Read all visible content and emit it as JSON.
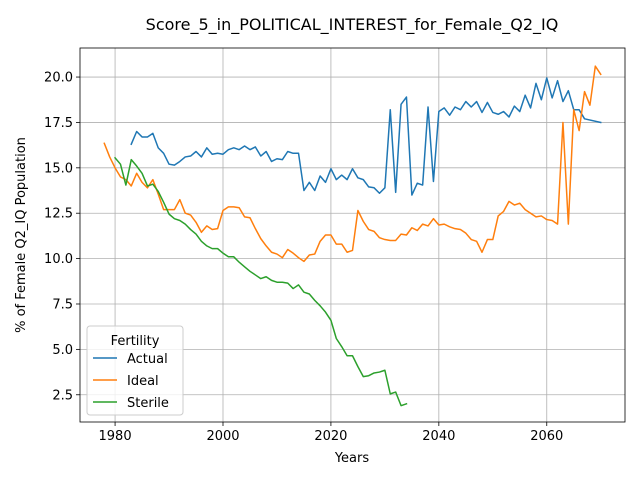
{
  "chart_data": {
    "type": "line",
    "title": "Score_5_in_POLITICAL_INTEREST_for_Female_Q2_IQ",
    "xlabel": "Years",
    "ylabel": "% of Female Q2_IQ Population",
    "xlim": [
      1973.5,
      2074.5
    ],
    "ylim": [
      1.0,
      21.6
    ],
    "xticks": [
      1980,
      2000,
      2020,
      2040,
      2060
    ],
    "yticks": [
      2.5,
      5.0,
      7.5,
      10.0,
      12.5,
      15.0,
      17.5,
      20.0
    ],
    "xtick_labels": [
      "1980",
      "2000",
      "2020",
      "2040",
      "2060"
    ],
    "ytick_labels": [
      "2.5",
      "5.0",
      "7.5",
      "10.0",
      "12.5",
      "15.0",
      "17.5",
      "20.0"
    ],
    "grid": true,
    "legend": {
      "title": "Fertility",
      "placement": "bottom-left"
    },
    "series": [
      {
        "name": "Actual",
        "color": "#1f77b4",
        "x": [
          1983,
          1984,
          1985,
          1986,
          1987,
          1988,
          1989,
          1990,
          1991,
          1992,
          1993,
          1994,
          1995,
          1996,
          1997,
          1998,
          1999,
          2000,
          2001,
          2002,
          2003,
          2004,
          2005,
          2006,
          2007,
          2008,
          2009,
          2010,
          2011,
          2012,
          2013,
          2014,
          2015,
          2016,
          2017,
          2018,
          2019,
          2020,
          2021,
          2022,
          2023,
          2024,
          2025,
          2026,
          2027,
          2028,
          2029,
          2030,
          2031,
          2032,
          2033,
          2034,
          2035,
          2036,
          2037,
          2038,
          2039,
          2040,
          2041,
          2042,
          2043,
          2044,
          2045,
          2046,
          2047,
          2048,
          2049,
          2050,
          2051,
          2052,
          2053,
          2054,
          2055,
          2056,
          2057,
          2058,
          2059,
          2060,
          2061,
          2062,
          2063,
          2064,
          2065,
          2066,
          2067,
          2070
        ],
        "y": [
          16.3,
          17.0,
          16.7,
          16.7,
          16.9,
          16.1,
          15.8,
          15.2,
          15.15,
          15.35,
          15.6,
          15.65,
          15.9,
          15.6,
          16.1,
          15.75,
          15.8,
          15.75,
          16.0,
          16.1,
          16.0,
          16.2,
          16.0,
          16.15,
          15.65,
          15.9,
          15.35,
          15.5,
          15.45,
          15.9,
          15.8,
          15.8,
          13.75,
          14.2,
          13.75,
          14.55,
          14.2,
          14.95,
          14.35,
          14.6,
          14.35,
          14.95,
          14.45,
          14.35,
          13.95,
          13.9,
          13.6,
          13.9,
          18.2,
          13.65,
          18.5,
          18.9,
          13.5,
          14.15,
          14.05,
          18.35,
          14.25,
          18.1,
          18.3,
          17.9,
          18.35,
          18.2,
          18.65,
          18.35,
          18.65,
          18.05,
          18.6,
          18.05,
          17.95,
          18.1,
          17.8,
          18.4,
          18.1,
          19.0,
          18.3,
          19.65,
          18.75,
          19.95,
          18.85,
          19.8,
          18.65,
          19.25,
          18.2,
          18.2,
          17.7,
          17.5
        ]
      },
      {
        "name": "Ideal",
        "color": "#ff7f0e",
        "x": [
          1978,
          1979,
          1980,
          1981,
          1982,
          1983,
          1984,
          1985,
          1986,
          1987,
          1988,
          1989,
          1990,
          1991,
          1992,
          1993,
          1994,
          1995,
          1996,
          1997,
          1998,
          1999,
          2000,
          2001,
          2002,
          2003,
          2004,
          2005,
          2006,
          2007,
          2008,
          2009,
          2010,
          2011,
          2012,
          2013,
          2014,
          2015,
          2016,
          2017,
          2018,
          2019,
          2020,
          2021,
          2022,
          2023,
          2024,
          2025,
          2026,
          2027,
          2028,
          2029,
          2030,
          2031,
          2032,
          2033,
          2034,
          2035,
          2036,
          2037,
          2038,
          2039,
          2040,
          2041,
          2042,
          2043,
          2044,
          2045,
          2046,
          2047,
          2048,
          2049,
          2050,
          2051,
          2052,
          2053,
          2054,
          2055,
          2056,
          2057,
          2058,
          2059,
          2060,
          2061,
          2062,
          2063,
          2064,
          2065,
          2066,
          2067,
          2068,
          2069,
          2070
        ],
        "y": [
          16.35,
          15.6,
          15.0,
          14.5,
          14.35,
          14.0,
          14.7,
          14.2,
          13.9,
          14.35,
          13.55,
          12.7,
          12.7,
          12.7,
          13.25,
          12.5,
          12.4,
          12.0,
          11.45,
          11.8,
          11.6,
          11.65,
          12.65,
          12.85,
          12.85,
          12.8,
          12.3,
          12.25,
          11.65,
          11.1,
          10.7,
          10.35,
          10.25,
          10.05,
          10.5,
          10.3,
          10.05,
          9.85,
          10.2,
          10.25,
          10.95,
          11.3,
          11.3,
          10.8,
          10.8,
          10.35,
          10.45,
          12.65,
          12.05,
          11.6,
          11.5,
          11.15,
          11.05,
          11.0,
          11.0,
          11.35,
          11.3,
          11.7,
          11.55,
          11.9,
          11.8,
          12.2,
          11.85,
          11.9,
          11.75,
          11.65,
          11.6,
          11.4,
          11.05,
          10.95,
          10.35,
          11.05,
          11.05,
          12.35,
          12.6,
          13.15,
          12.95,
          13.05,
          12.7,
          12.5,
          12.3,
          12.35,
          12.15,
          12.1,
          11.9,
          17.5,
          11.9,
          18.2,
          17.05,
          19.2,
          18.45,
          20.6,
          20.15
        ]
      },
      {
        "name": "Sterile",
        "color": "#2ca02c",
        "x": [
          1980,
          1981,
          1982,
          1983,
          1984,
          1985,
          1986,
          1987,
          1988,
          1989,
          1990,
          1991,
          1992,
          1993,
          1994,
          1995,
          1996,
          1997,
          1998,
          1999,
          2000,
          2001,
          2002,
          2003,
          2004,
          2005,
          2006,
          2007,
          2008,
          2009,
          2010,
          2011,
          2012,
          2013,
          2014,
          2015,
          2016,
          2017,
          2018,
          2019,
          2020,
          2021,
          2022,
          2023,
          2024,
          2025,
          2026,
          2027,
          2028,
          2029,
          2030,
          2031,
          2032,
          2033,
          2034
        ],
        "y": [
          15.55,
          15.2,
          14.05,
          15.45,
          15.1,
          14.7,
          14.0,
          14.1,
          13.7,
          13.1,
          12.45,
          12.2,
          12.1,
          11.9,
          11.6,
          11.35,
          10.95,
          10.7,
          10.55,
          10.55,
          10.3,
          10.1,
          10.1,
          9.8,
          9.55,
          9.3,
          9.1,
          8.9,
          9.0,
          8.8,
          8.7,
          8.7,
          8.65,
          8.35,
          8.55,
          8.15,
          8.05,
          7.7,
          7.4,
          7.05,
          6.6,
          5.6,
          5.15,
          4.65,
          4.65,
          4.05,
          3.5,
          3.55,
          3.7,
          3.75,
          3.85,
          2.55,
          2.65,
          1.9,
          2.0
        ]
      }
    ]
  }
}
